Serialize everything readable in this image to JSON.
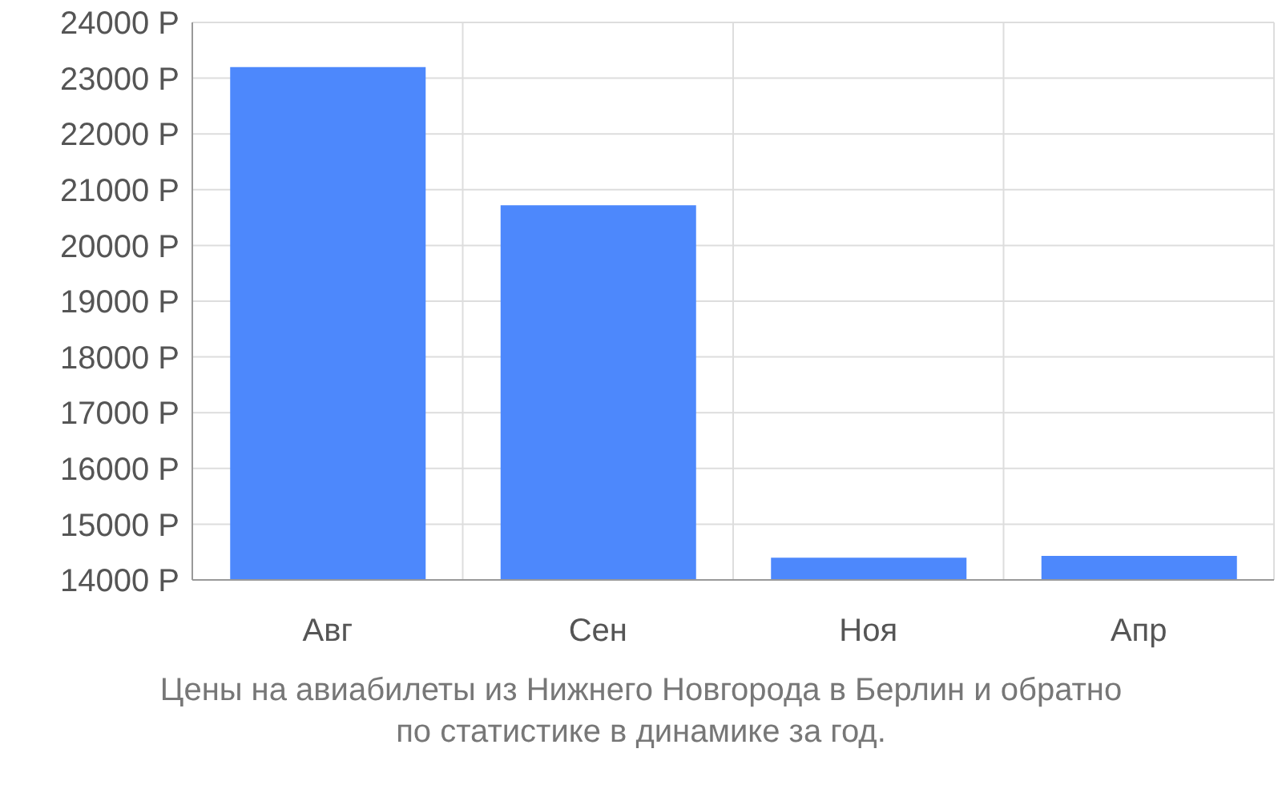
{
  "chart_data": {
    "type": "bar",
    "categories": [
      "Авг",
      "Сен",
      "Ноя",
      "Апр"
    ],
    "values": [
      23200,
      20720,
      14400,
      14430
    ],
    "color": "#4d88fc",
    "ylim": [
      14000,
      24000
    ],
    "yticks": [
      {
        "value": 14000,
        "label": "14000 Р"
      },
      {
        "value": 15000,
        "label": "15000 Р"
      },
      {
        "value": 16000,
        "label": "16000 Р"
      },
      {
        "value": 17000,
        "label": "17000 Р"
      },
      {
        "value": 18000,
        "label": "18000 Р"
      },
      {
        "value": 19000,
        "label": "19000 Р"
      },
      {
        "value": 20000,
        "label": "20000 Р"
      },
      {
        "value": 21000,
        "label": "21000 Р"
      },
      {
        "value": 22000,
        "label": "22000 Р"
      },
      {
        "value": 23000,
        "label": "23000 Р"
      },
      {
        "value": 24000,
        "label": "24000 Р"
      }
    ],
    "grid": true,
    "annotations": [
      "Цены на авиабилеты из Нижнего Новгорода в Берлин и обратно по статистике в динамике за год."
    ]
  }
}
